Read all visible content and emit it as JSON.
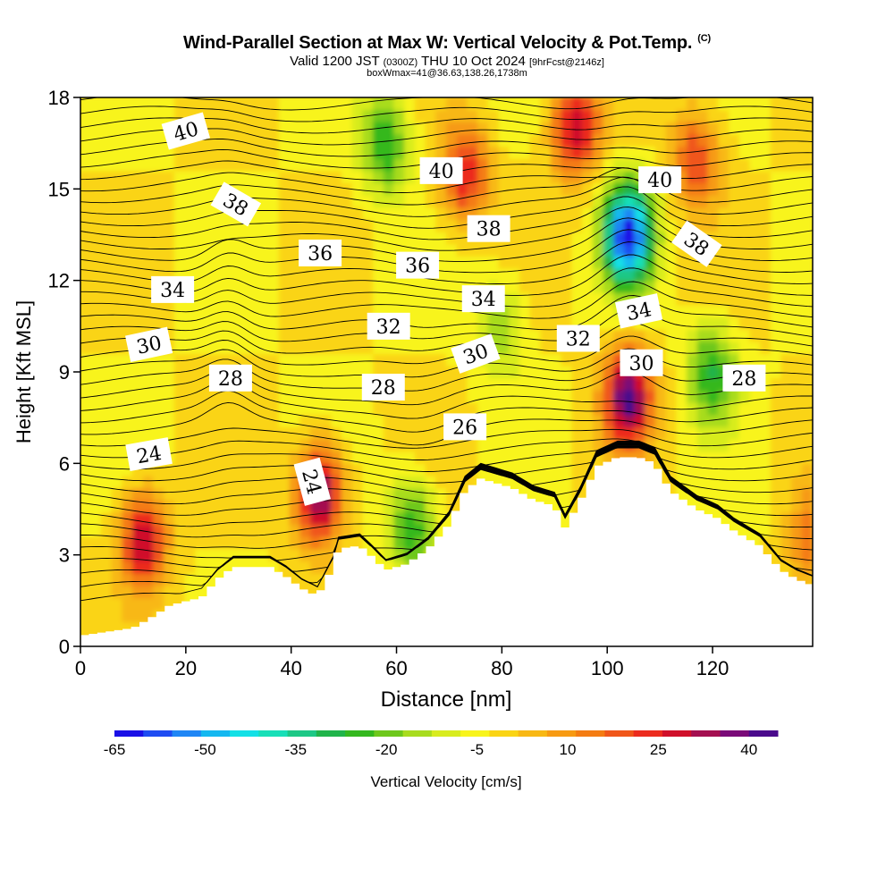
{
  "header": {
    "title": "Wind-Parallel Section at Max W: Vertical Velocity & Pot.Temp.",
    "copyright": "(C)",
    "valid_prefix": "Valid 1200 JST",
    "valid_utc": "(0300Z)",
    "valid_date": "THU 10 Oct 2024",
    "forecast": "[9hrFcst@2146z]",
    "box_info": "boxWmax=41@36.63,138.26,1738m"
  },
  "chart_data": {
    "type": "heatmap",
    "title": "Wind-Parallel Section at Max W: Vertical Velocity & Pot.Temp.",
    "xlabel": "Distance [nm]",
    "ylabel": "Height [Kft MSL]",
    "xlim": [
      0,
      139
    ],
    "ylim": [
      0,
      18
    ],
    "x_ticks": [
      0,
      20,
      40,
      60,
      80,
      100,
      120
    ],
    "y_ticks": [
      0,
      3,
      6,
      9,
      12,
      15,
      18
    ],
    "colorbar": {
      "label": "Vertical Velocity [cm/s]",
      "tick_labels": [
        -65,
        -50,
        -35,
        -20,
        -5,
        10,
        25,
        40
      ],
      "levels": [
        -65,
        -60,
        -55,
        -50,
        -45,
        -40,
        -35,
        -30,
        -25,
        -20,
        -15,
        -10,
        -5,
        0,
        5,
        10,
        15,
        20,
        25,
        30,
        35,
        40,
        45
      ],
      "colors": [
        "#1a10e6",
        "#1e4cf2",
        "#1f86f5",
        "#14b8f0",
        "#13e0e6",
        "#18dfb8",
        "#1dc886",
        "#20b44a",
        "#34b81e",
        "#6ec81c",
        "#a8dc1e",
        "#d8ec1e",
        "#f8f41c",
        "#fad414",
        "#f8b814",
        "#f79a12",
        "#f47c12",
        "#f0561a",
        "#ec2c1e",
        "#d0102a",
        "#a41050",
        "#7a0a78",
        "#4a0a8c"
      ]
    },
    "terrain_kft": [
      [
        0,
        0.35
      ],
      [
        10,
        0.6
      ],
      [
        12,
        0.8
      ],
      [
        14,
        1.0
      ],
      [
        17,
        1.35
      ],
      [
        23,
        1.6
      ],
      [
        26,
        2.2
      ],
      [
        29,
        2.6
      ],
      [
        36,
        2.6
      ],
      [
        39,
        2.3
      ],
      [
        42,
        1.9
      ],
      [
        45,
        1.65
      ],
      [
        48,
        2.6
      ],
      [
        49,
        3.2
      ],
      [
        53,
        3.3
      ],
      [
        55,
        3.0
      ],
      [
        58,
        2.5
      ],
      [
        62,
        2.7
      ],
      [
        66,
        3.2
      ],
      [
        70,
        4.0
      ],
      [
        73,
        5.1
      ],
      [
        76,
        5.5
      ],
      [
        82,
        5.2
      ],
      [
        86,
        4.8
      ],
      [
        90,
        4.6
      ],
      [
        92,
        3.9
      ],
      [
        95,
        4.8
      ],
      [
        98,
        5.9
      ],
      [
        102,
        6.2
      ],
      [
        106,
        6.2
      ],
      [
        109,
        6.0
      ],
      [
        112,
        5.1
      ],
      [
        117,
        4.5
      ],
      [
        121,
        4.2
      ],
      [
        124,
        3.8
      ],
      [
        129,
        3.3
      ],
      [
        133,
        2.5
      ],
      [
        136,
        2.2
      ],
      [
        139,
        2.0
      ]
    ],
    "velocity_features": [
      {
        "x": 12,
        "z": 3.5,
        "w": 35
      },
      {
        "x": 45.5,
        "z": 5.0,
        "w": 45
      },
      {
        "x": 58,
        "z": 16.5,
        "w": -25
      },
      {
        "x": 63,
        "z": 4.0,
        "w": -25
      },
      {
        "x": 73,
        "z": 15.5,
        "w": 30
      },
      {
        "x": 94,
        "z": 17.0,
        "w": 35
      },
      {
        "x": 104,
        "z": 13.5,
        "w": -60
      },
      {
        "x": 104,
        "z": 8.2,
        "w": 45
      },
      {
        "x": 120,
        "z": 9.0,
        "w": -25
      },
      {
        "x": 117,
        "z": 16.0,
        "w": 25
      },
      {
        "x": 139,
        "z": 3.5,
        "w": 20
      },
      {
        "x": 80,
        "z": 10.5,
        "w": -15
      }
    ],
    "contour_labels": [
      {
        "value": "40",
        "x": 20,
        "z": 16.9
      },
      {
        "value": "40",
        "x": 68.5,
        "z": 15.6
      },
      {
        "value": "40",
        "x": 110,
        "z": 15.3
      },
      {
        "value": "38",
        "x": 29.5,
        "z": 14.5
      },
      {
        "value": "38",
        "x": 77.5,
        "z": 13.7
      },
      {
        "value": "38",
        "x": 117,
        "z": 13.2
      },
      {
        "value": "36",
        "x": 45.5,
        "z": 12.9
      },
      {
        "value": "36",
        "x": 64,
        "z": 12.5
      },
      {
        "value": "34",
        "x": 17.5,
        "z": 11.7
      },
      {
        "value": "34",
        "x": 76.5,
        "z": 11.4
      },
      {
        "value": "34",
        "x": 106,
        "z": 11.0
      },
      {
        "value": "32",
        "x": 58.5,
        "z": 10.5
      },
      {
        "value": "32",
        "x": 94.5,
        "z": 10.1
      },
      {
        "value": "30",
        "x": 13,
        "z": 9.9
      },
      {
        "value": "30",
        "x": 75,
        "z": 9.6
      },
      {
        "value": "30",
        "x": 106.5,
        "z": 9.3
      },
      {
        "value": "28",
        "x": 28.5,
        "z": 8.8
      },
      {
        "value": "28",
        "x": 57.5,
        "z": 8.5
      },
      {
        "value": "28",
        "x": 126,
        "z": 8.8
      },
      {
        "value": "26",
        "x": 73,
        "z": 7.2
      },
      {
        "value": "24",
        "x": 13,
        "z": 6.3
      },
      {
        "value": "24",
        "x": 44,
        "z": 5.4
      }
    ]
  }
}
